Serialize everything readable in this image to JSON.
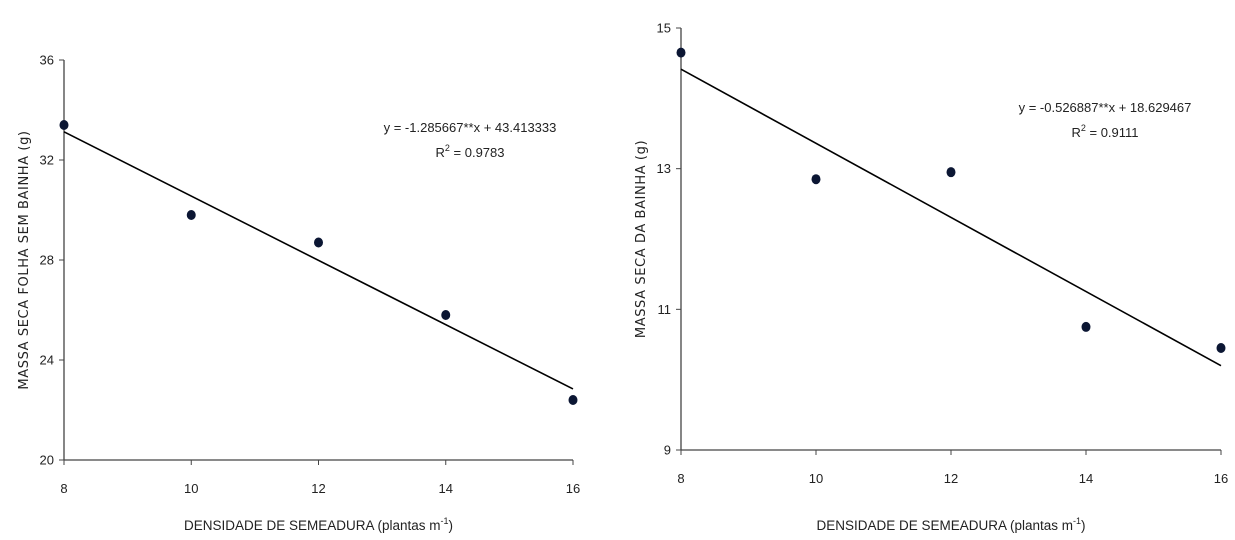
{
  "chart_data": [
    {
      "type": "scatter",
      "title": "",
      "xlabel": "DENSIDADE DE SEMEADURA (plantas m",
      "xlabel_sup": "-1",
      "xlabel_end": ")",
      "ylabel": "MASSA SECA FOLHA SEM BAINHA (g)",
      "xlim": [
        8,
        16
      ],
      "ylim": [
        20,
        36
      ],
      "xticks": [
        8,
        10,
        12,
        14,
        16
      ],
      "yticks": [
        20,
        24,
        28,
        32,
        36
      ],
      "x": [
        8,
        10,
        12,
        14,
        16
      ],
      "y": [
        33.4,
        29.8,
        28.7,
        25.8,
        22.4
      ],
      "trendline": {
        "slope": -1.285667,
        "intercept": 43.413333
      },
      "equation": "y = -1.285667**x + 43.413333",
      "r2_prefix": "R",
      "r2_sup": "2",
      "r2_value": " = 0.9783",
      "grid": false,
      "marker_color": "#0b1633",
      "line_color": "#000000"
    },
    {
      "type": "scatter",
      "title": "",
      "xlabel": "DENSIDADE DE SEMEADURA (plantas m",
      "xlabel_sup": "-1",
      "xlabel_end": ")",
      "ylabel": "MASSA SECA DA BAINHA (g)",
      "xlim": [
        8,
        16
      ],
      "ylim": [
        9,
        15
      ],
      "xticks": [
        8,
        10,
        12,
        14,
        16
      ],
      "yticks": [
        9,
        11,
        13,
        15
      ],
      "x": [
        8,
        10,
        12,
        14,
        16
      ],
      "y": [
        14.65,
        12.85,
        12.95,
        10.75,
        10.45
      ],
      "trendline": {
        "slope": -0.526887,
        "intercept": 18.629467
      },
      "equation": "y = -0.526887**x + 18.629467",
      "r2_prefix": "R",
      "r2_sup": "2",
      "r2_value": " = 0.9111",
      "grid": false,
      "marker_color": "#0b1633",
      "line_color": "#000000"
    }
  ]
}
